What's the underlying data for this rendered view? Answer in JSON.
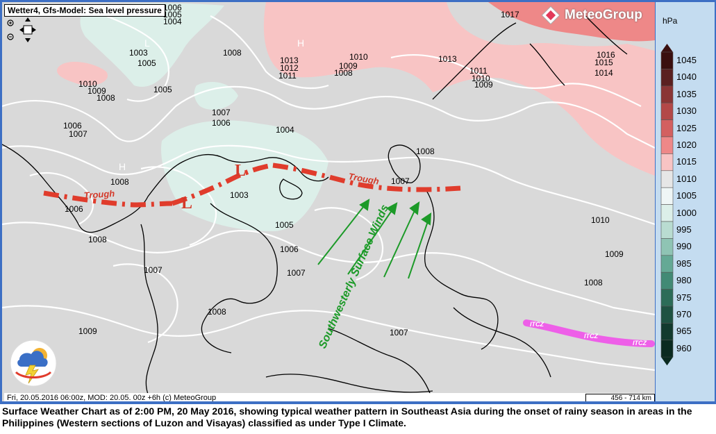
{
  "header": {
    "title": "Wetter4, Gfs-Model: Sea level pressure"
  },
  "brand": {
    "name": "MeteoGroup"
  },
  "footer": {
    "run_info": "Fri, 20.05.2016 06:00z, MOD: 20.05. 00z +6h (c) MeteoGroup",
    "scale": "456 - 714 km"
  },
  "legend": {
    "unit": "hPa",
    "levels": [
      {
        "value": "1045",
        "color": "#3a1010"
      },
      {
        "value": "1040",
        "color": "#5a2020"
      },
      {
        "value": "1035",
        "color": "#8a3535"
      },
      {
        "value": "1030",
        "color": "#b34848"
      },
      {
        "value": "1025",
        "color": "#d36060"
      },
      {
        "value": "1020",
        "color": "#ee8888"
      },
      {
        "value": "1015",
        "color": "#f8c4c4"
      },
      {
        "value": "1010",
        "color": "#e6e6e6"
      },
      {
        "value": "1005",
        "color": "#eff6f6"
      },
      {
        "value": "1000",
        "color": "#dcefe9"
      },
      {
        "value": "995",
        "color": "#b9dcd1"
      },
      {
        "value": "990",
        "color": "#8fc4b4"
      },
      {
        "value": "985",
        "color": "#64a995"
      },
      {
        "value": "980",
        "color": "#428a75"
      },
      {
        "value": "975",
        "color": "#2c6c58"
      },
      {
        "value": "970",
        "color": "#1e5242"
      },
      {
        "value": "965",
        "color": "#123a2e"
      },
      {
        "value": "960",
        "color": "#0a2a20"
      }
    ]
  },
  "annotations": {
    "trough_label_1": "Trough",
    "trough_label_2": "Trough",
    "low_1": "L",
    "low_2": "L",
    "winds_label": "Southwesterly Surface Winds",
    "itcz_1": "ITCZ",
    "itcz_2": "ITCZ",
    "itcz_3": "ITCZ",
    "high_1": "H",
    "high_2": "H",
    "low_faint": "L"
  },
  "isobar_labels": [
    {
      "t": "1006"
    },
    {
      "t": "1005"
    },
    {
      "t": "1004"
    },
    {
      "t": "1003"
    },
    {
      "t": "1005"
    },
    {
      "t": "1008"
    },
    {
      "t": "1010"
    },
    {
      "t": "1009"
    },
    {
      "t": "1008"
    },
    {
      "t": "1005"
    },
    {
      "t": "1007"
    },
    {
      "t": "1006"
    },
    {
      "t": "1004"
    },
    {
      "t": "1006"
    },
    {
      "t": "1007"
    },
    {
      "t": "1013"
    },
    {
      "t": "1012"
    },
    {
      "t": "1011"
    },
    {
      "t": "1010"
    },
    {
      "t": "1009"
    },
    {
      "t": "1008"
    },
    {
      "t": "1013"
    },
    {
      "t": "1011"
    },
    {
      "t": "1010"
    },
    {
      "t": "1009"
    },
    {
      "t": "1017"
    },
    {
      "t": "1016"
    },
    {
      "t": "1015"
    },
    {
      "t": "1014"
    },
    {
      "t": "1008"
    },
    {
      "t": "1007"
    },
    {
      "t": "1003"
    },
    {
      "t": "1008"
    },
    {
      "t": "1006"
    },
    {
      "t": "1008"
    },
    {
      "t": "1005"
    },
    {
      "t": "1006"
    },
    {
      "t": "1007"
    },
    {
      "t": "1007"
    },
    {
      "t": "1008"
    },
    {
      "t": "1009"
    },
    {
      "t": "1007"
    },
    {
      "t": "1010"
    },
    {
      "t": "1009"
    },
    {
      "t": "1008"
    }
  ],
  "caption": "Surface Weather Chart as of 2:00 PM, 20 May 2016, showing typical weather pattern in Southeast Asia during the onset of rainy season in areas in the Philippines (Western sections of Luzon and Visayas) classified as under Type I Climate."
}
